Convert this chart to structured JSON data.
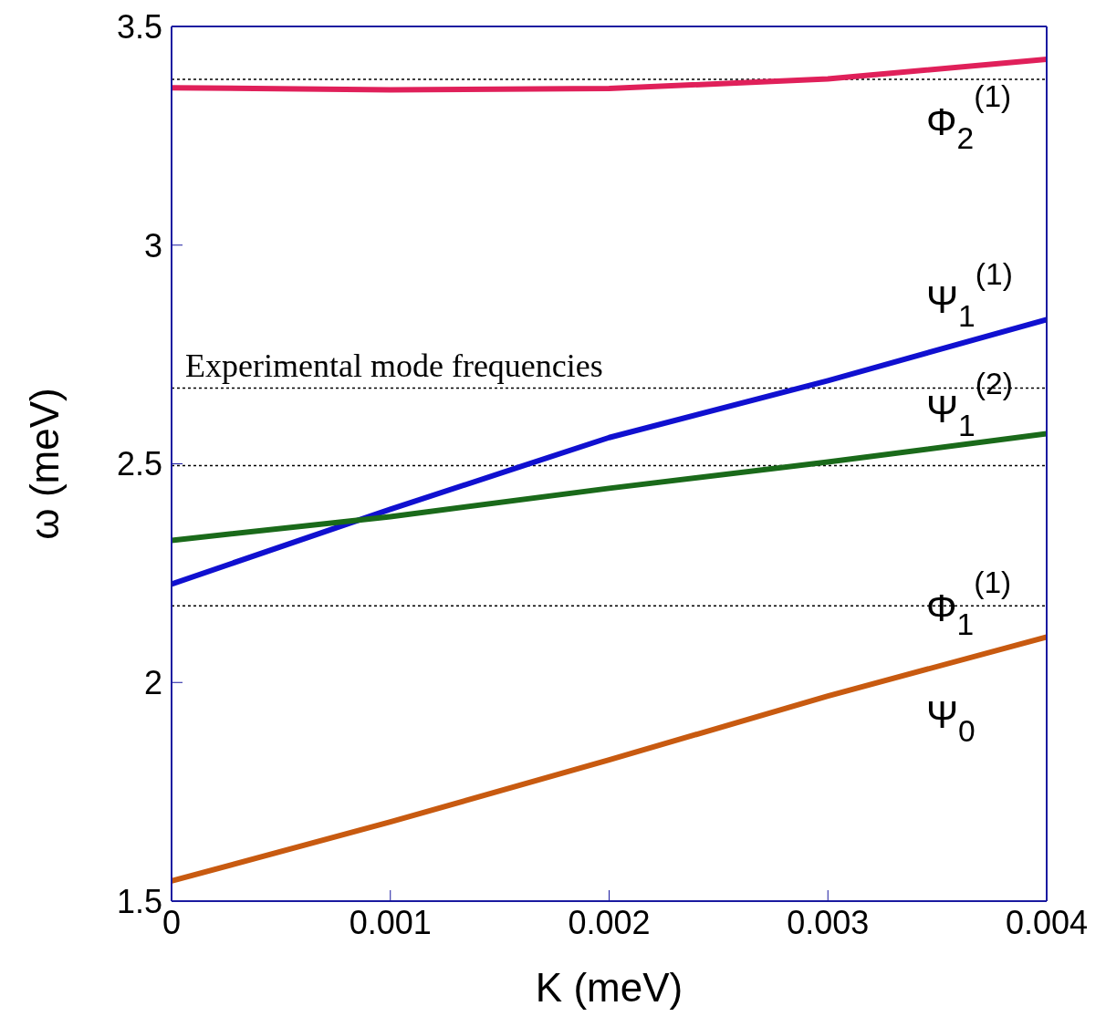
{
  "chart_data": {
    "type": "line",
    "xlabel": "K (meV)",
    "ylabel": "ω (meV)",
    "xlim": [
      0,
      0.004
    ],
    "xticks": [
      0,
      0.001,
      0.002,
      0.003,
      0.004
    ],
    "ylim": [
      1.5,
      3.5
    ],
    "yticks": [
      1.5,
      2,
      2.5,
      3,
      3.5
    ],
    "marker": "none",
    "line_style": "solid",
    "series": [
      {
        "color": "#e0205a",
        "x": [
          0,
          0.001,
          0.002,
          0.003,
          0.004
        ],
        "values": [
          3.36,
          3.355,
          3.358,
          3.38,
          3.425
        ]
      },
      {
        "color": "#1010d0",
        "x": [
          0,
          0.001,
          0.002,
          0.003,
          0.004
        ],
        "values": [
          2.225,
          2.396,
          2.56,
          2.69,
          2.83
        ]
      },
      {
        "color": "#1a6a1a",
        "x": [
          0,
          0.001,
          0.002,
          0.003,
          0.004
        ],
        "values": [
          2.325,
          2.379,
          2.444,
          2.504,
          2.569
        ]
      },
      {
        "color": "#c85a10",
        "x": [
          0,
          0.001,
          0.002,
          0.003,
          0.004
        ],
        "values": [
          1.546,
          1.681,
          1.823,
          1.969,
          2.104
        ]
      }
    ],
    "ref_lines": [
      {
        "axis": "y",
        "value": 3.379,
        "color": "#000000",
        "line_style": "dotted"
      },
      {
        "axis": "y",
        "value": 2.673,
        "color": "#000000",
        "line_style": "dotted"
      },
      {
        "axis": "y",
        "value": 2.496,
        "color": "#000000",
        "line_style": "dotted"
      },
      {
        "axis": "y",
        "value": 2.175,
        "color": "#000000",
        "line_style": "dotted"
      }
    ],
    "annotations": [
      "Φ$_{2}$$^{(1)}$",
      "Ψ$_{1}$$^{(1)}$",
      "Experimental mode frequencies",
      "Ψ$_{1}$$^{(2)}$",
      "Φ$_{1}$$^{(1)}$",
      "Ψ$_{0}$"
    ]
  }
}
